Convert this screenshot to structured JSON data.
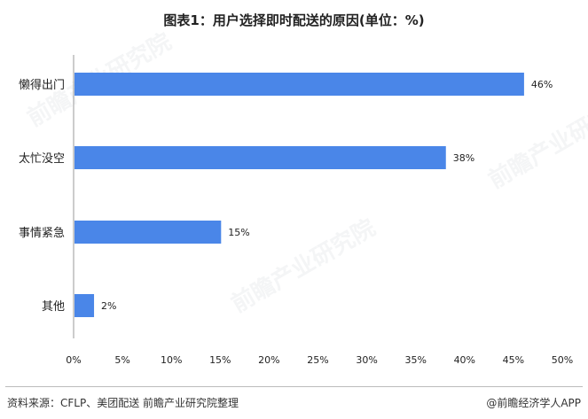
{
  "title": "图表1：用户选择即时配送的原因(单位：%)",
  "source": "资料来源：CFLP、美团配送 前瞻产业研究院整理",
  "brand": "@前瞻经济学人APP",
  "watermark": "前瞻产业研究院",
  "colors": {
    "bar": "#4a86e8",
    "axis": "#999999",
    "text": "#222222"
  },
  "chart_data": {
    "type": "bar",
    "orientation": "horizontal",
    "categories": [
      "懒得出门",
      "太忙没空",
      "事情紧急",
      "其他"
    ],
    "values": [
      46,
      38,
      15,
      2
    ],
    "value_labels": [
      "46%",
      "38%",
      "15%",
      "2%"
    ],
    "xlim": [
      0,
      50
    ],
    "x_ticks": [
      "0%",
      "5%",
      "10%",
      "15%",
      "20%",
      "25%",
      "30%",
      "35%",
      "40%",
      "45%",
      "50%"
    ],
    "grid": false,
    "legend": false
  }
}
